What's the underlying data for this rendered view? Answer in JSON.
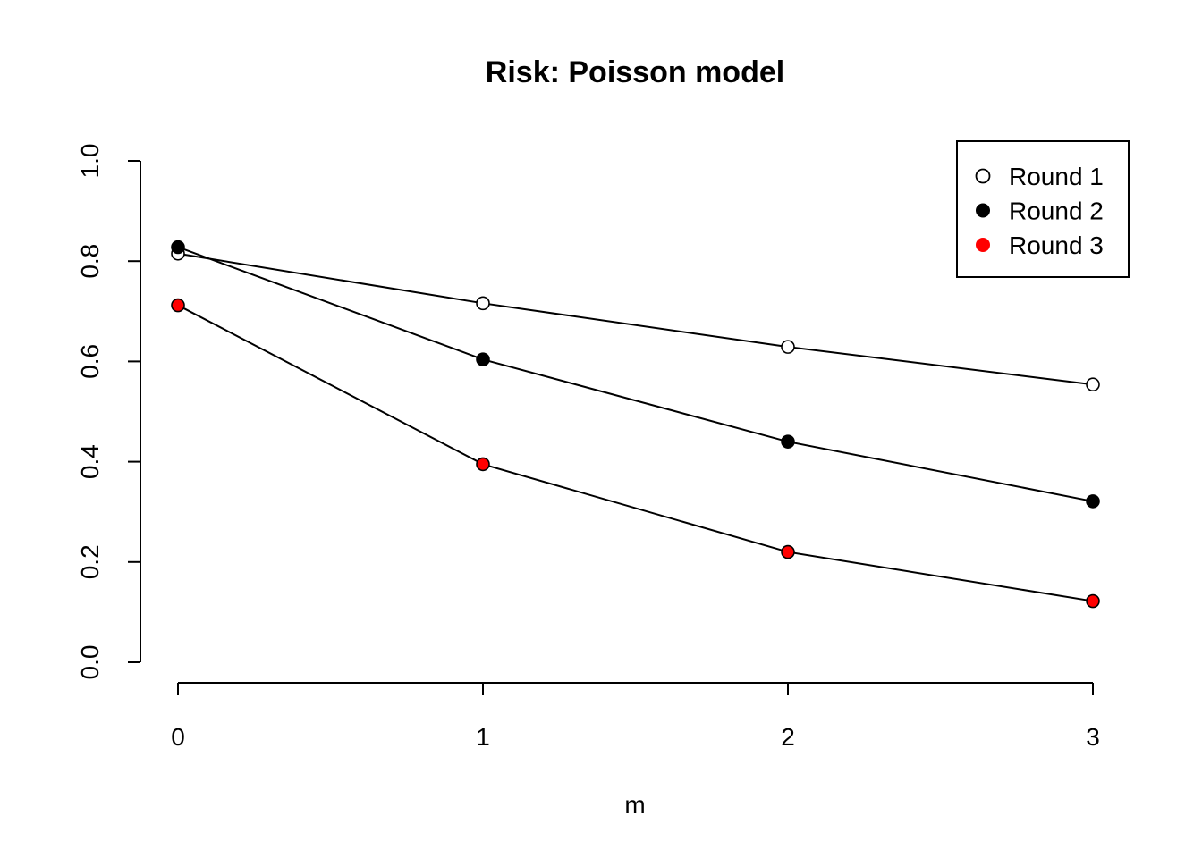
{
  "chart_data": {
    "type": "line",
    "title": "Risk: Poisson model",
    "xlabel": "m",
    "ylabel": "",
    "x": [
      0,
      1,
      2,
      3
    ],
    "xticks": [
      "0",
      "1",
      "2",
      "3"
    ],
    "xlim": [
      0,
      3
    ],
    "ylim": [
      0,
      1
    ],
    "yticks": [
      "0.0",
      "0.2",
      "0.4",
      "0.6",
      "0.8",
      "1.0"
    ],
    "grid": false,
    "legend_position": "top-right",
    "series": [
      {
        "name": "Round 1",
        "values": [
          0.815,
          0.716,
          0.629,
          0.554
        ],
        "marker_fill": "#ffffff",
        "marker_edge": "#000000"
      },
      {
        "name": "Round 2",
        "values": [
          0.828,
          0.604,
          0.44,
          0.321
        ],
        "marker_fill": "#000000",
        "marker_edge": "#000000"
      },
      {
        "name": "Round 3",
        "values": [
          0.712,
          0.395,
          0.22,
          0.122
        ],
        "marker_fill": "#ff0000",
        "marker_edge": "#000000"
      }
    ]
  }
}
